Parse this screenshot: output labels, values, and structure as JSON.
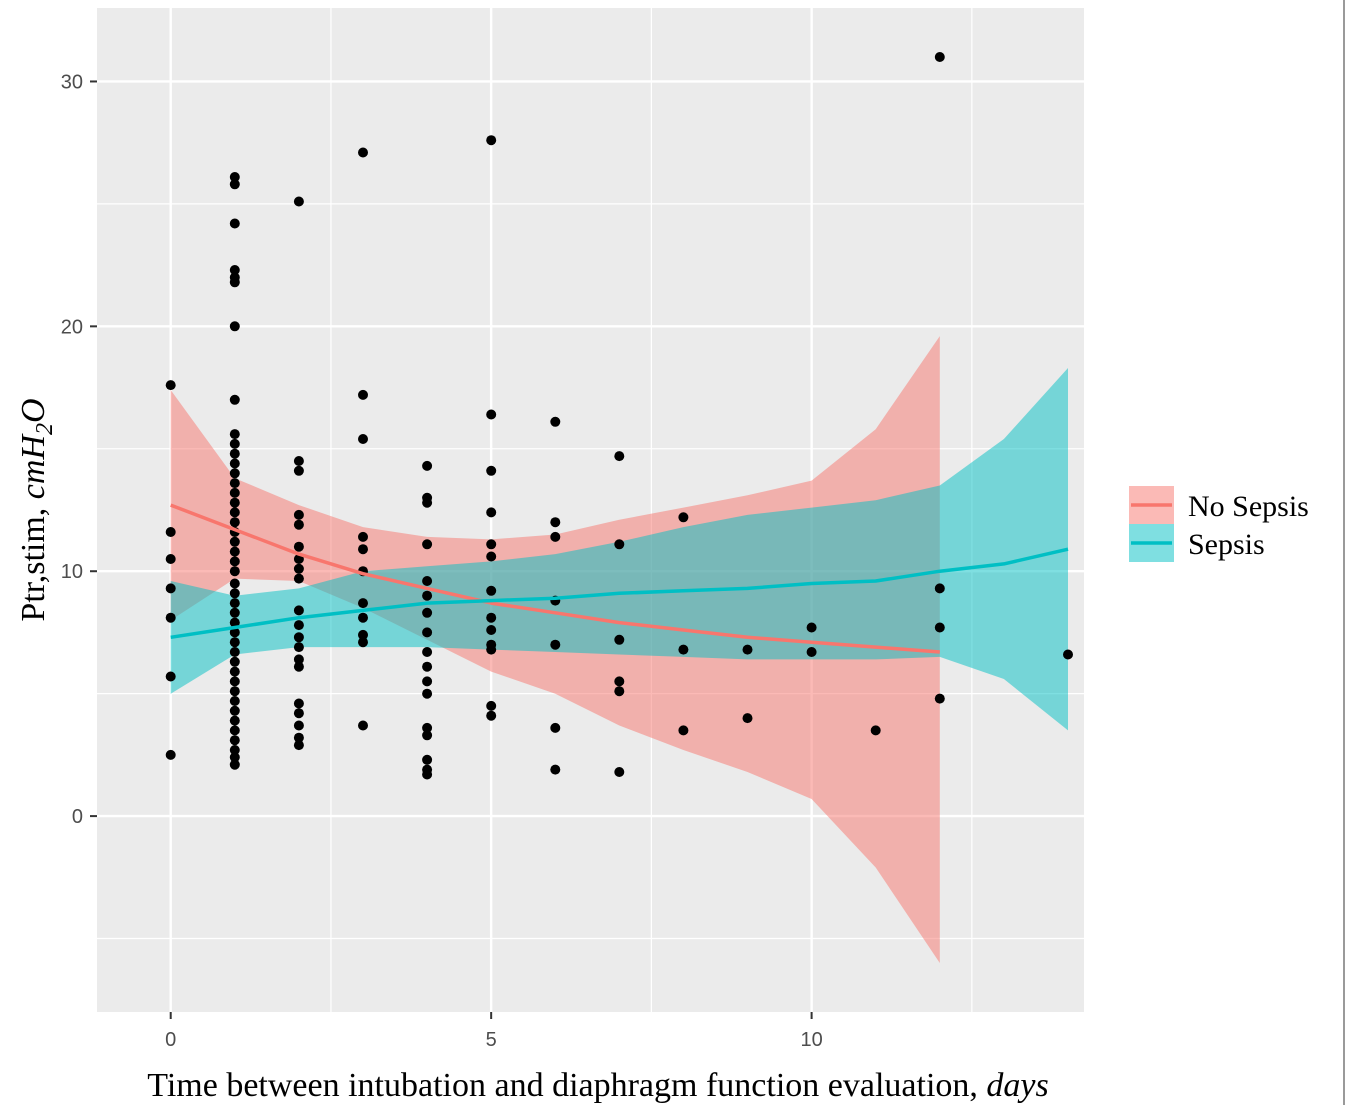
{
  "chart_data": {
    "type": "scatter",
    "xlabel": "Time between intubation and diaphragm function evaluation,",
    "xlabel_unit": "days",
    "ylabel": "Ptr,stim,",
    "ylabel_unit": {
      "base": "cmH",
      "sub": "2",
      "end": "O"
    },
    "xlim": [
      -1.15,
      14.25
    ],
    "ylim": [
      -8,
      33
    ],
    "x_ticks": [
      0,
      5,
      10
    ],
    "y_ticks": [
      0,
      10,
      20,
      30
    ],
    "grid": true,
    "legend_position": "right",
    "colors": {
      "panel": "#ebebeb",
      "grid": "#ffffff",
      "points": "#000000",
      "no_sepsis": "#f8766d",
      "sepsis": "#00bfc4"
    },
    "points": [
      [
        0,
        17.6
      ],
      [
        0,
        11.6
      ],
      [
        0,
        10.5
      ],
      [
        0,
        9.3
      ],
      [
        0,
        8.1
      ],
      [
        0,
        5.7
      ],
      [
        0,
        2.5
      ],
      [
        1,
        26.1
      ],
      [
        1,
        25.8
      ],
      [
        1,
        24.2
      ],
      [
        1,
        22.3
      ],
      [
        1,
        22.0
      ],
      [
        1,
        21.8
      ],
      [
        1,
        20.0
      ],
      [
        1,
        17.0
      ],
      [
        1,
        15.6
      ],
      [
        1,
        15.2
      ],
      [
        1,
        14.8
      ],
      [
        1,
        14.4
      ],
      [
        1,
        14.0
      ],
      [
        1,
        13.6
      ],
      [
        1,
        13.2
      ],
      [
        1,
        12.8
      ],
      [
        1,
        12.4
      ],
      [
        1,
        12.0
      ],
      [
        1,
        11.6
      ],
      [
        1,
        11.2
      ],
      [
        1,
        10.8
      ],
      [
        1,
        10.4
      ],
      [
        1,
        10.0
      ],
      [
        1,
        9.5
      ],
      [
        1,
        9.1
      ],
      [
        1,
        8.7
      ],
      [
        1,
        8.3
      ],
      [
        1,
        7.9
      ],
      [
        1,
        7.5
      ],
      [
        1,
        7.1
      ],
      [
        1,
        6.7
      ],
      [
        1,
        6.3
      ],
      [
        1,
        5.9
      ],
      [
        1,
        5.5
      ],
      [
        1,
        5.1
      ],
      [
        1,
        4.7
      ],
      [
        1,
        4.3
      ],
      [
        1,
        3.9
      ],
      [
        1,
        3.5
      ],
      [
        1,
        3.1
      ],
      [
        1,
        2.7
      ],
      [
        1,
        2.4
      ],
      [
        1,
        2.1
      ],
      [
        2,
        25.1
      ],
      [
        2,
        14.5
      ],
      [
        2,
        14.1
      ],
      [
        2,
        12.3
      ],
      [
        2,
        11.9
      ],
      [
        2,
        11.0
      ],
      [
        2,
        10.5
      ],
      [
        2,
        10.1
      ],
      [
        2,
        9.7
      ],
      [
        2,
        8.4
      ],
      [
        2,
        7.8
      ],
      [
        2,
        7.3
      ],
      [
        2,
        6.9
      ],
      [
        2,
        6.4
      ],
      [
        2,
        6.1
      ],
      [
        2,
        4.6
      ],
      [
        2,
        4.2
      ],
      [
        2,
        3.7
      ],
      [
        2,
        3.2
      ],
      [
        2,
        2.9
      ],
      [
        3,
        27.1
      ],
      [
        3,
        17.2
      ],
      [
        3,
        15.4
      ],
      [
        3,
        11.4
      ],
      [
        3,
        10.9
      ],
      [
        3,
        10.0
      ],
      [
        3,
        8.7
      ],
      [
        3,
        8.1
      ],
      [
        3,
        7.4
      ],
      [
        3,
        7.1
      ],
      [
        3,
        3.7
      ],
      [
        4,
        14.3
      ],
      [
        4,
        13.0
      ],
      [
        4,
        12.8
      ],
      [
        4,
        11.1
      ],
      [
        4,
        9.6
      ],
      [
        4,
        9.0
      ],
      [
        4,
        8.3
      ],
      [
        4,
        7.5
      ],
      [
        4,
        6.7
      ],
      [
        4,
        6.1
      ],
      [
        4,
        5.5
      ],
      [
        4,
        5.0
      ],
      [
        4,
        3.6
      ],
      [
        4,
        3.3
      ],
      [
        4,
        2.3
      ],
      [
        4,
        1.9
      ],
      [
        4,
        1.7
      ],
      [
        5,
        27.6
      ],
      [
        5,
        16.4
      ],
      [
        5,
        14.1
      ],
      [
        5,
        12.4
      ],
      [
        5,
        11.1
      ],
      [
        5,
        10.6
      ],
      [
        5,
        9.2
      ],
      [
        5,
        8.1
      ],
      [
        5,
        7.6
      ],
      [
        5,
        7.0
      ],
      [
        5,
        6.8
      ],
      [
        5,
        4.5
      ],
      [
        5,
        4.1
      ],
      [
        6,
        16.1
      ],
      [
        6,
        12.0
      ],
      [
        6,
        11.4
      ],
      [
        6,
        8.8
      ],
      [
        6,
        7.0
      ],
      [
        6,
        3.6
      ],
      [
        6,
        1.9
      ],
      [
        7,
        14.7
      ],
      [
        7,
        11.1
      ],
      [
        7,
        7.2
      ],
      [
        7,
        5.5
      ],
      [
        7,
        5.1
      ],
      [
        7,
        1.8
      ],
      [
        8,
        12.2
      ],
      [
        8,
        6.8
      ],
      [
        8,
        3.5
      ],
      [
        9,
        6.8
      ],
      [
        9,
        4.0
      ],
      [
        10,
        7.7
      ],
      [
        10,
        6.7
      ],
      [
        11,
        3.5
      ],
      [
        12,
        31.0
      ],
      [
        12,
        9.3
      ],
      [
        12,
        7.7
      ],
      [
        12,
        4.8
      ],
      [
        14,
        6.6
      ]
    ],
    "series": [
      {
        "name": "No Sepsis",
        "color": "#f8766d",
        "x": [
          0,
          1,
          2,
          3,
          4,
          5,
          6,
          7,
          8,
          9,
          10,
          11,
          12
        ],
        "fit": [
          12.7,
          11.7,
          10.7,
          9.9,
          9.3,
          8.7,
          8.3,
          7.9,
          7.6,
          7.3,
          7.1,
          6.9,
          6.7
        ],
        "lower": [
          8.0,
          9.7,
          9.6,
          8.5,
          7.2,
          5.9,
          5.0,
          3.7,
          2.7,
          1.8,
          0.7,
          -2.1,
          -6.0
        ],
        "upper": [
          17.4,
          13.8,
          12.7,
          11.8,
          11.4,
          11.3,
          11.5,
          12.1,
          12.6,
          13.1,
          13.7,
          15.8,
          19.6
        ]
      },
      {
        "name": "Sepsis",
        "color": "#00bfc4",
        "x": [
          0,
          1,
          2,
          3,
          4,
          5,
          6,
          7,
          8,
          9,
          10,
          11,
          12,
          13,
          14
        ],
        "fit": [
          7.3,
          7.7,
          8.1,
          8.4,
          8.7,
          8.8,
          8.9,
          9.1,
          9.2,
          9.3,
          9.5,
          9.6,
          10.0,
          10.3,
          10.9
        ],
        "lower": [
          5.0,
          6.6,
          6.9,
          6.9,
          6.9,
          6.8,
          6.7,
          6.6,
          6.5,
          6.4,
          6.4,
          6.4,
          6.5,
          5.6,
          3.5
        ],
        "upper": [
          9.6,
          9.0,
          9.3,
          10.0,
          10.2,
          10.4,
          10.7,
          11.2,
          11.8,
          12.3,
          12.6,
          12.9,
          13.5,
          15.4,
          18.3
        ]
      }
    ]
  }
}
